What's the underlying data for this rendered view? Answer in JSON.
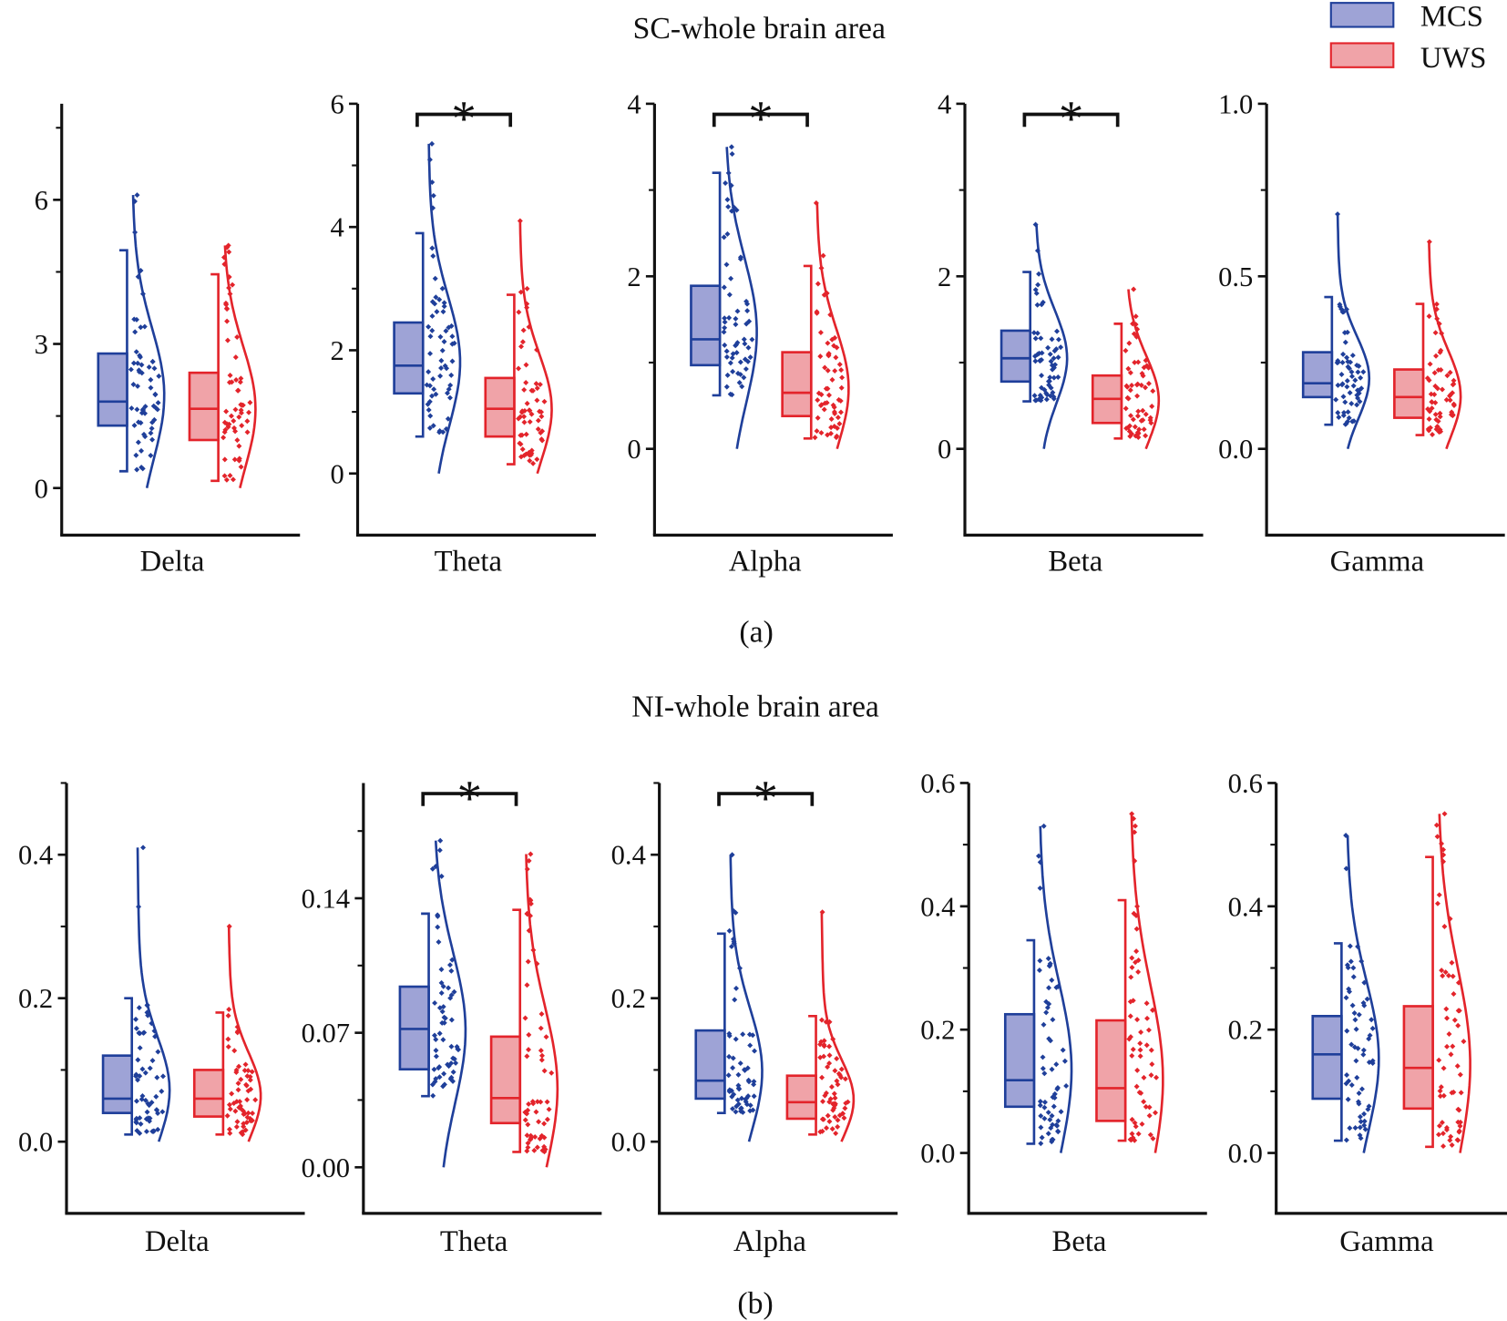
{
  "titles": {
    "row_a": "SC-whole brain area",
    "row_b": "NI-whole brain area",
    "caption_a": "(a)",
    "caption_b": "(b)"
  },
  "legend": [
    {
      "label": "MCS",
      "stroke": "#1f3f9a",
      "fill": "#9ea3d6"
    },
    {
      "label": "UWS",
      "stroke": "#e3242b",
      "fill": "#f0a3a8"
    }
  ],
  "significance_marker": "*",
  "chart_data": [
    {
      "type": "box-raincloud",
      "row": "SC-whole brain area",
      "xlabel": "Delta",
      "ylim": [
        -0.98,
        8
      ],
      "yticks": [
        0,
        3,
        6
      ],
      "yticklabels": [
        "0",
        "3",
        "6"
      ],
      "minor_ticks": [
        1.5,
        4.5,
        7.5
      ],
      "significant": false,
      "groups": [
        {
          "name": "MCS",
          "whisker_low": 0.35,
          "q1": 1.3,
          "median": 1.8,
          "q3": 2.8,
          "whisker_high": 4.95,
          "max": 6.1
        },
        {
          "name": "UWS",
          "whisker_low": 0.15,
          "q1": 1.0,
          "median": 1.65,
          "q3": 2.4,
          "whisker_high": 4.45,
          "max": 5.05
        }
      ]
    },
    {
      "type": "box-raincloud",
      "row": "SC-whole brain area",
      "xlabel": "Theta",
      "ylim": [
        -1,
        6
      ],
      "yticks": [
        0,
        2,
        4,
        6
      ],
      "yticklabels": [
        "0",
        "2",
        "4",
        "6"
      ],
      "minor_ticks": [
        1,
        3,
        5
      ],
      "significant": true,
      "groups": [
        {
          "name": "MCS",
          "whisker_low": 0.6,
          "q1": 1.3,
          "median": 1.75,
          "q3": 2.45,
          "whisker_high": 3.9,
          "max": 5.35
        },
        {
          "name": "UWS",
          "whisker_low": 0.15,
          "q1": 0.6,
          "median": 1.05,
          "q3": 1.55,
          "whisker_high": 2.9,
          "max": 4.1
        }
      ]
    },
    {
      "type": "box-raincloud",
      "row": "SC-whole brain area",
      "xlabel": "Alpha",
      "ylim": [
        -1,
        4
      ],
      "yticks": [
        0,
        2,
        4
      ],
      "yticklabels": [
        "0",
        "2",
        "4"
      ],
      "minor_ticks": [
        1,
        3
      ],
      "significant": true,
      "groups": [
        {
          "name": "MCS",
          "whisker_low": 0.62,
          "q1": 0.97,
          "median": 1.27,
          "q3": 1.89,
          "whisker_high": 3.2,
          "max": 3.5
        },
        {
          "name": "UWS",
          "whisker_low": 0.12,
          "q1": 0.38,
          "median": 0.65,
          "q3": 1.12,
          "whisker_high": 2.12,
          "max": 2.85
        }
      ]
    },
    {
      "type": "box-raincloud",
      "row": "SC-whole brain area",
      "xlabel": "Beta",
      "ylim": [
        -1,
        4
      ],
      "yticks": [
        0,
        2,
        4
      ],
      "yticklabels": [
        "0",
        "2",
        "4"
      ],
      "minor_ticks": [
        1,
        3
      ],
      "significant": true,
      "groups": [
        {
          "name": "MCS",
          "whisker_low": 0.55,
          "q1": 0.78,
          "median": 1.05,
          "q3": 1.37,
          "whisker_high": 2.05,
          "max": 2.6
        },
        {
          "name": "UWS",
          "whisker_low": 0.12,
          "q1": 0.3,
          "median": 0.58,
          "q3": 0.85,
          "whisker_high": 1.45,
          "max": 1.85
        }
      ]
    },
    {
      "type": "box-raincloud",
      "row": "SC-whole brain area",
      "xlabel": "Gamma",
      "ylim": [
        -0.25,
        1.0
      ],
      "yticks": [
        0,
        0.5,
        1.0
      ],
      "yticklabels": [
        "0.0",
        "0.5",
        "1.0"
      ],
      "minor_ticks": [
        0.25,
        0.75
      ],
      "significant": false,
      "groups": [
        {
          "name": "MCS",
          "whisker_low": 0.07,
          "q1": 0.15,
          "median": 0.19,
          "q3": 0.28,
          "whisker_high": 0.44,
          "max": 0.68
        },
        {
          "name": "UWS",
          "whisker_low": 0.04,
          "q1": 0.09,
          "median": 0.15,
          "q3": 0.23,
          "whisker_high": 0.42,
          "max": 0.6
        }
      ]
    },
    {
      "type": "box-raincloud",
      "row": "NI-whole brain area",
      "xlabel": "Delta",
      "ylim": [
        -0.1,
        0.5
      ],
      "yticks": [
        0,
        0.2,
        0.4
      ],
      "yticklabels": [
        "0.0",
        "0.2",
        "0.4"
      ],
      "minor_ticks": [
        0.1,
        0.3,
        0.5
      ],
      "significant": false,
      "groups": [
        {
          "name": "MCS",
          "whisker_low": 0.01,
          "q1": 0.04,
          "median": 0.06,
          "q3": 0.12,
          "whisker_high": 0.2,
          "max": 0.41
        },
        {
          "name": "UWS",
          "whisker_low": 0.01,
          "q1": 0.035,
          "median": 0.06,
          "q3": 0.1,
          "whisker_high": 0.18,
          "max": 0.3
        }
      ]
    },
    {
      "type": "box-raincloud",
      "row": "NI-whole brain area",
      "xlabel": "Theta",
      "ylim": [
        -0.024,
        0.2
      ],
      "yticks": [
        0,
        0.07,
        0.14
      ],
      "yticklabels": [
        "0.00",
        "0.07",
        "0.14"
      ],
      "minor_ticks": [
        0.035,
        0.105,
        0.175
      ],
      "significant": true,
      "groups": [
        {
          "name": "MCS",
          "whisker_low": 0.037,
          "q1": 0.051,
          "median": 0.072,
          "q3": 0.094,
          "whisker_high": 0.132,
          "max": 0.17
        },
        {
          "name": "UWS",
          "whisker_low": 0.008,
          "q1": 0.023,
          "median": 0.036,
          "q3": 0.068,
          "whisker_high": 0.134,
          "max": 0.163
        }
      ]
    },
    {
      "type": "box-raincloud",
      "row": "NI-whole brain area",
      "xlabel": "Alpha",
      "ylim": [
        -0.1,
        0.5
      ],
      "yticks": [
        0,
        0.2,
        0.4
      ],
      "yticklabels": [
        "0.0",
        "0.2",
        "0.4"
      ],
      "minor_ticks": [
        0.1,
        0.3,
        0.5
      ],
      "significant": true,
      "groups": [
        {
          "name": "MCS",
          "whisker_low": 0.04,
          "q1": 0.06,
          "median": 0.085,
          "q3": 0.155,
          "whisker_high": 0.29,
          "max": 0.4
        },
        {
          "name": "UWS",
          "whisker_low": 0.01,
          "q1": 0.032,
          "median": 0.055,
          "q3": 0.092,
          "whisker_high": 0.175,
          "max": 0.32
        }
      ]
    },
    {
      "type": "box-raincloud",
      "row": "NI-whole brain area",
      "xlabel": "Beta",
      "ylim": [
        -0.098,
        0.6
      ],
      "yticks": [
        0,
        0.2,
        0.4,
        0.6
      ],
      "yticklabels": [
        "0.0",
        "0.2",
        "0.4",
        "0.6"
      ],
      "minor_ticks": [
        0.1,
        0.3,
        0.5
      ],
      "significant": false,
      "groups": [
        {
          "name": "MCS",
          "whisker_low": 0.015,
          "q1": 0.075,
          "median": 0.118,
          "q3": 0.225,
          "whisker_high": 0.345,
          "max": 0.53
        },
        {
          "name": "UWS",
          "whisker_low": 0.02,
          "q1": 0.052,
          "median": 0.105,
          "q3": 0.215,
          "whisker_high": 0.41,
          "max": 0.55
        }
      ]
    },
    {
      "type": "box-raincloud",
      "row": "NI-whole brain area",
      "xlabel": "Gamma",
      "ylim": [
        -0.098,
        0.6
      ],
      "yticks": [
        0,
        0.2,
        0.4,
        0.6
      ],
      "yticklabels": [
        "0.0",
        "0.2",
        "0.4",
        "0.6"
      ],
      "minor_ticks": [
        0.1,
        0.3,
        0.5
      ],
      "significant": false,
      "groups": [
        {
          "name": "MCS",
          "whisker_low": 0.02,
          "q1": 0.088,
          "median": 0.16,
          "q3": 0.222,
          "whisker_high": 0.34,
          "max": 0.515
        },
        {
          "name": "UWS",
          "whisker_low": 0.01,
          "q1": 0.072,
          "median": 0.138,
          "q3": 0.238,
          "whisker_high": 0.48,
          "max": 0.55
        }
      ]
    }
  ]
}
